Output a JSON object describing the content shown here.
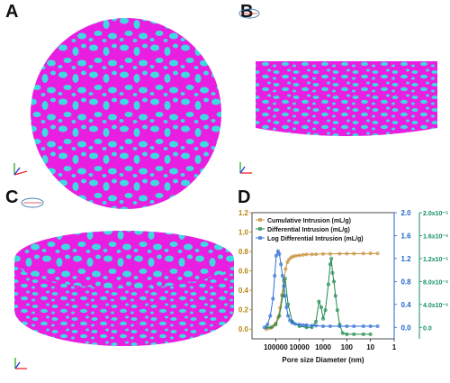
{
  "panels": {
    "a": {
      "letter": "A"
    },
    "b": {
      "letter": "B"
    },
    "c": {
      "letter": "C"
    },
    "d": {
      "letter": "D"
    }
  },
  "colors": {
    "matrix": "#e81fe0",
    "pore": "#3fd9e0",
    "cumulative": "#c8903a",
    "differential": "#1f8a4c",
    "log_differential": "#2f6fd6",
    "left_axis": "#b8860b",
    "right_axis_1": "#1e66c8",
    "right_axis_2": "#128e6a"
  },
  "chart_data": {
    "type": "line",
    "xlabel": "Pore size Diameter (nm)",
    "x_scale": "log",
    "x_reversed": true,
    "xlim": [
      1000000,
      1
    ],
    "x_ticks": [
      "100000",
      "10000",
      "1000",
      "100",
      "10",
      "1"
    ],
    "y_left": {
      "ylim": [
        -0.1,
        1.2
      ],
      "ticks": [
        "0.0",
        "0.2",
        "0.4",
        "0.6",
        "0.8",
        "1.0",
        "1.2"
      ]
    },
    "y_right_1": {
      "ylim": [
        -0.2,
        2.0
      ],
      "ticks": [
        "0.0",
        "0.4",
        "0.8",
        "1.2",
        "1.6",
        "2.0"
      ]
    },
    "y_right_2": {
      "ylim": [
        -2e-06,
        2e-05
      ],
      "ticks": [
        "0.0",
        "4.0x10⁻⁶",
        "8.0x10⁻⁶",
        "1.2x10⁻⁵",
        "1.6x10⁻⁵",
        "2.0x10⁻⁵"
      ]
    },
    "legend_position": "top-left",
    "series": [
      {
        "name": "Cumulative Intrusion (mL/g)",
        "axis": "left",
        "x": [
          250000,
          180000,
          130000,
          100000,
          80000,
          65000,
          55000,
          45000,
          38000,
          32000,
          27000,
          22000,
          18000,
          14000,
          10000,
          7000,
          5000,
          3000,
          2000,
          1000,
          500,
          200,
          100,
          50,
          20,
          10,
          5
        ],
        "y": [
          0.0,
          0.01,
          0.03,
          0.06,
          0.12,
          0.22,
          0.35,
          0.5,
          0.62,
          0.69,
          0.72,
          0.74,
          0.75,
          0.755,
          0.76,
          0.765,
          0.77,
          0.77,
          0.772,
          0.775,
          0.775,
          0.777,
          0.778,
          0.778,
          0.779,
          0.78,
          0.78
        ]
      },
      {
        "name": "Differential Intrusion (mL/g)",
        "axis": "right_2",
        "x": [
          250000,
          150000,
          100000,
          70000,
          50000,
          40000,
          30000,
          20000,
          10000,
          5000,
          3000,
          2000,
          1500,
          1200,
          1000,
          800,
          600,
          500,
          450,
          400,
          350,
          300,
          250,
          200,
          150,
          100,
          50,
          20,
          10
        ],
        "y": [
          0,
          0,
          5e-07,
          2e-06,
          5.5e-06,
          8.5e-06,
          4e-06,
          1e-06,
          2e-07,
          0,
          0,
          1e-06,
          4.5e-06,
          3.5e-06,
          1.5e-06,
          3e-06,
          7.5e-06,
          1.1e-05,
          1.2e-05,
          9.5e-06,
          8e-06,
          5.5e-06,
          3e-06,
          5e-07,
          -1e-06,
          -1.2e-06,
          -1.2e-06,
          -1.2e-06,
          -1.2e-06
        ]
      },
      {
        "name": "Log Differential Intrusion (mL/g)",
        "axis": "right_1",
        "x": [
          300000,
          220000,
          170000,
          130000,
          110000,
          95000,
          80000,
          70000,
          60000,
          52000,
          45000,
          40000,
          35000,
          30000,
          25000,
          20000,
          15000,
          10000,
          7000,
          5000,
          3000,
          2000,
          1000,
          500,
          200,
          100,
          50,
          20,
          10,
          5
        ],
        "y": [
          0.0,
          0.05,
          0.2,
          0.5,
          0.9,
          1.25,
          1.33,
          1.28,
          1.1,
          0.9,
          0.72,
          0.55,
          0.35,
          0.2,
          0.12,
          0.08,
          0.06,
          0.05,
          0.04,
          0.04,
          0.03,
          0.03,
          0.02,
          0.02,
          0.02,
          0.02,
          0.02,
          0.02,
          0.02,
          0.02
        ]
      }
    ]
  }
}
